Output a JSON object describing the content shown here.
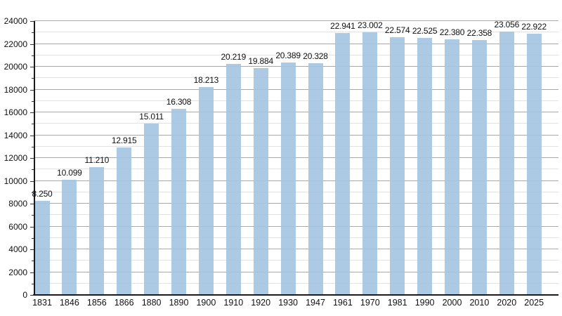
{
  "chart_data": {
    "type": "bar",
    "title": "",
    "xlabel": "",
    "ylabel": "",
    "categories": [
      "1831",
      "1846",
      "1856",
      "1866",
      "1880",
      "1890",
      "1900",
      "1910",
      "1920",
      "1930",
      "1947",
      "1961",
      "1970",
      "1981",
      "1990",
      "2000",
      "2010",
      "2020",
      "2025"
    ],
    "values": [
      8250,
      10099,
      11210,
      12915,
      15011,
      16308,
      18213,
      20219,
      19884,
      20389,
      20328,
      22941,
      23002,
      22574,
      22525,
      22380,
      22358,
      23056,
      22922
    ],
    "value_labels": [
      "8.250",
      "10.099",
      "11.210",
      "12.915",
      "15.011",
      "16.308",
      "18.213",
      "20.219",
      "19.884",
      "20.389",
      "20.328",
      "22.941",
      "23.002",
      "22.574",
      "22.525",
      "22.380",
      "22.358",
      "23.056",
      "22.922"
    ],
    "ylim": [
      0,
      24000
    ],
    "ytick_step": 2000,
    "minor_grid_step": 1000,
    "ytick_labels": [
      "0",
      "2000",
      "4000",
      "6000",
      "8000",
      "10000",
      "12000",
      "14000",
      "16000",
      "18000",
      "20000",
      "22000",
      "24000"
    ],
    "grid": true,
    "legend": null,
    "colors": {
      "bar_fill": "rgba(164,196,225,0.9)",
      "bar_fill_hex": "#adcae4",
      "major_grid": "#a8a8a8",
      "minor_grid": "#e2e2e2",
      "axis": "#1a1a1a",
      "text": "#111111",
      "background": "#ffffff"
    }
  }
}
